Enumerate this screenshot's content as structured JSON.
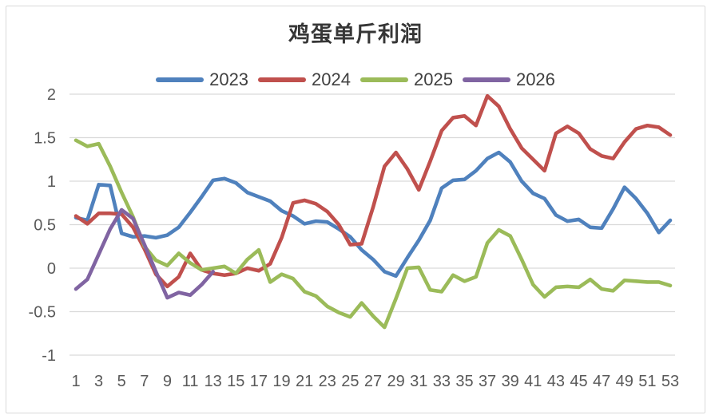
{
  "chart_data": {
    "type": "line",
    "title": "鸡蛋单斤利润",
    "xlabel": "",
    "ylabel": "",
    "x_unit": "week-of-year",
    "x_range": [
      1,
      53
    ],
    "ylim": [
      -1,
      2
    ],
    "grid": true,
    "legend_position": "top-center",
    "grid_color": "#d9d9d9",
    "tick_text_color": "#595959",
    "x_tick_labels": [
      1,
      3,
      5,
      7,
      9,
      11,
      13,
      15,
      17,
      19,
      21,
      23,
      25,
      27,
      29,
      31,
      33,
      35,
      37,
      39,
      41,
      43,
      45,
      47,
      49,
      51,
      53
    ],
    "y_ticks": [
      {
        "label": "2",
        "value": 2
      },
      {
        "label": "1.5",
        "value": 1.5
      },
      {
        "label": "1",
        "value": 1
      },
      {
        "label": "0.5",
        "value": 0.5
      },
      {
        "label": "0",
        "value": 0
      },
      {
        "label": "-0.5",
        "value": -0.5
      },
      {
        "label": "-1",
        "value": -1
      }
    ],
    "series": [
      {
        "name": "2023",
        "color": "#4f81bd",
        "start_week": 1,
        "values": [
          0.58,
          0.55,
          0.96,
          0.95,
          0.4,
          0.36,
          0.37,
          0.35,
          0.38,
          0.47,
          0.64,
          0.82,
          1.01,
          1.03,
          0.98,
          0.87,
          0.82,
          0.77,
          0.66,
          0.6,
          0.51,
          0.54,
          0.53,
          0.45,
          0.36,
          0.21,
          0.1,
          -0.04,
          -0.09,
          0.12,
          0.32,
          0.55,
          0.92,
          1.01,
          1.02,
          1.12,
          1.26,
          1.33,
          1.22,
          1.0,
          0.86,
          0.8,
          0.61,
          0.54,
          0.56,
          0.47,
          0.46,
          0.68,
          0.93,
          0.8,
          0.63,
          0.41,
          0.55
        ]
      },
      {
        "name": "2024",
        "color": "#c0504d",
        "start_week": 1,
        "values": [
          0.6,
          0.51,
          0.63,
          0.63,
          0.62,
          0.47,
          0.22,
          -0.07,
          -0.21,
          -0.1,
          0.17,
          -0.02,
          -0.06,
          -0.08,
          -0.06,
          0.0,
          -0.03,
          0.05,
          0.35,
          0.75,
          0.78,
          0.74,
          0.65,
          0.5,
          0.27,
          0.28,
          0.7,
          1.17,
          1.33,
          1.14,
          0.9,
          1.23,
          1.58,
          1.73,
          1.75,
          1.64,
          1.98,
          1.86,
          1.6,
          1.38,
          1.25,
          1.12,
          1.55,
          1.63,
          1.55,
          1.37,
          1.29,
          1.26,
          1.45,
          1.6,
          1.64,
          1.62,
          1.53
        ]
      },
      {
        "name": "2025",
        "color": "#9bbb59",
        "start_week": 1,
        "values": [
          1.47,
          1.4,
          1.43,
          1.17,
          0.87,
          0.59,
          0.25,
          0.09,
          0.03,
          0.17,
          0.06,
          -0.02,
          0.0,
          0.02,
          -0.06,
          0.1,
          0.21,
          -0.16,
          -0.07,
          -0.12,
          -0.27,
          -0.32,
          -0.44,
          -0.51,
          -0.56,
          -0.4,
          -0.55,
          -0.68,
          -0.35,
          0.0,
          0.01,
          -0.25,
          -0.27,
          -0.08,
          -0.15,
          -0.1,
          0.29,
          0.44,
          0.37,
          0.1,
          -0.19,
          -0.33,
          -0.22,
          -0.21,
          -0.22,
          -0.13,
          -0.24,
          -0.26,
          -0.14,
          -0.15,
          -0.16,
          -0.16,
          -0.2
        ]
      },
      {
        "name": "2026",
        "color": "#8064a2",
        "start_week": 1,
        "values": [
          -0.24,
          -0.13,
          0.16,
          0.45,
          0.67,
          0.57,
          0.27,
          -0.04,
          -0.34,
          -0.28,
          -0.31,
          -0.19,
          -0.04
        ]
      }
    ]
  }
}
